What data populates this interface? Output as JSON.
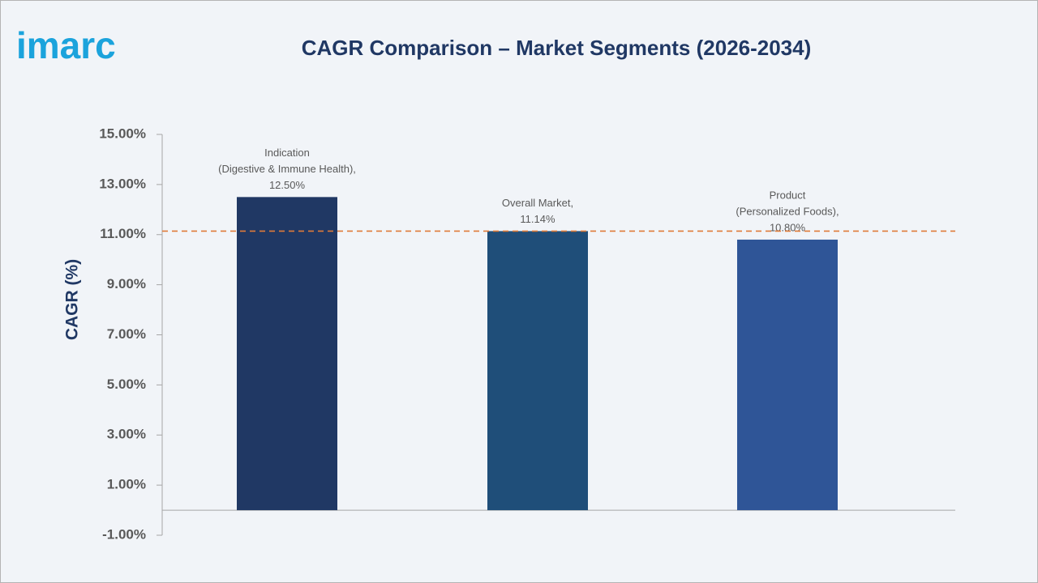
{
  "logo": "imarc",
  "chart_data": {
    "type": "bar",
    "title": "CAGR Comparison – Market Segments (2026-2034)",
    "y_label": "CAGR (%)",
    "categories": [
      [
        "Indication",
        "(Digestive & Immune Health),"
      ],
      [
        "Overall Market,"
      ],
      [
        "Product",
        "(Personalized Foods),"
      ]
    ],
    "values": [
      12.5,
      11.14,
      10.8
    ],
    "value_labels": [
      "12.50%",
      "11.14%",
      "10.80%"
    ],
    "colors": [
      "#203864",
      "#1f4e79",
      "#2f5597"
    ],
    "reference_line": {
      "value": 11.14,
      "color": "#e07b39"
    },
    "ylim": [
      -1,
      15
    ],
    "yticks": [
      {
        "value": -1,
        "label": "-1.00%"
      },
      {
        "value": 1,
        "label": "1.00%"
      },
      {
        "value": 3,
        "label": "3.00%"
      },
      {
        "value": 5,
        "label": "5.00%"
      },
      {
        "value": 7,
        "label": "7.00%"
      },
      {
        "value": 9,
        "label": "9.00%"
      },
      {
        "value": 11,
        "label": "11.00%"
      },
      {
        "value": 13,
        "label": "13.00%"
      },
      {
        "value": 15,
        "label": "15.00%"
      }
    ],
    "grid": false
  }
}
